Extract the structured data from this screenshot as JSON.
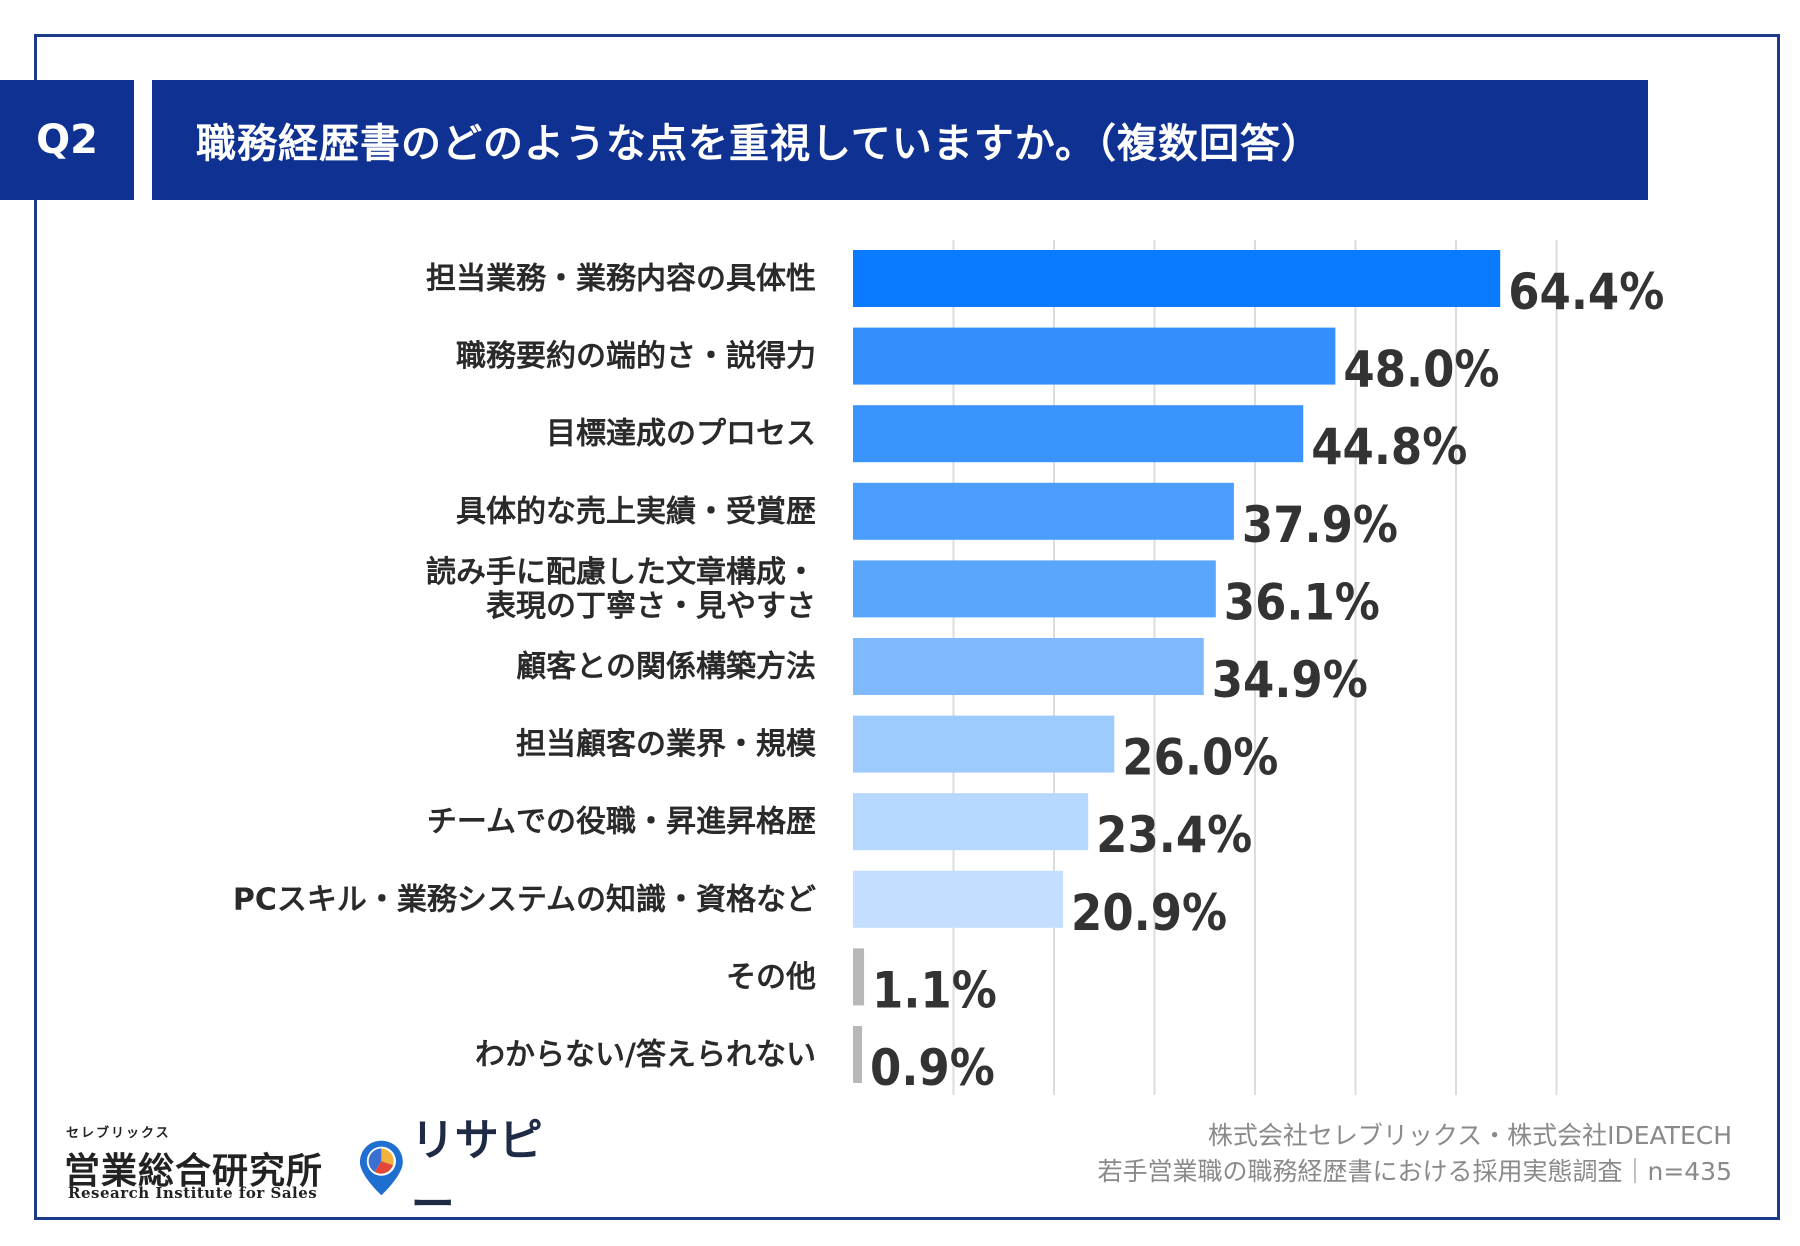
{
  "header": {
    "question_number": "Q2",
    "title": "職務経歴書のどのような点を重視していますか。（複数回答）"
  },
  "chart_data": {
    "type": "bar",
    "orientation": "horizontal",
    "categories": [
      [
        "担当業務・業務内容の具体性"
      ],
      [
        "職務要約の端的さ・説得力"
      ],
      [
        "目標達成のプロセス"
      ],
      [
        "具体的な売上実績・受賞歴"
      ],
      [
        "読み手に配慮した文章構成・",
        "表現の丁寧さ・見やすさ"
      ],
      [
        "顧客との関係構築方法"
      ],
      [
        "担当顧客の業界・規模"
      ],
      [
        "チームでの役職・昇進昇格歴"
      ],
      [
        "PCスキル・業務システムの知識・資格など"
      ],
      [
        "その他"
      ],
      [
        "わからない/答えられない"
      ]
    ],
    "values": [
      64.4,
      48.0,
      44.8,
      37.9,
      36.1,
      34.9,
      26.0,
      23.4,
      20.9,
      1.1,
      0.9
    ],
    "value_labels": [
      "64.4%",
      "48.0%",
      "44.8%",
      "37.9%",
      "36.1%",
      "34.9%",
      "26.0%",
      "23.4%",
      "20.9%",
      "1.1%",
      "0.9%"
    ],
    "colors": [
      "#0a7aff",
      "#348ffd",
      "#3b94fd",
      "#4c9dfd",
      "#5aa6fd",
      "#7eb9fd",
      "#9ecbfd",
      "#b7d8fe",
      "#c3defe",
      "#b8b8b8",
      "#b8b8b8"
    ],
    "xlim": [
      0,
      70
    ],
    "grid": true,
    "grid_step": 10
  },
  "footer": {
    "logo1_kana": "セレブリックス",
    "logo1_name": "営業総合研究所",
    "logo1_sub": "Research Institute for Sales",
    "logo2_name": "リサピー",
    "source_line1": "株式会社セレブリックス・株式会社IDEATECH",
    "source_line2": "若手営業職の職務経歴書における採用実態調査｜n=435"
  }
}
